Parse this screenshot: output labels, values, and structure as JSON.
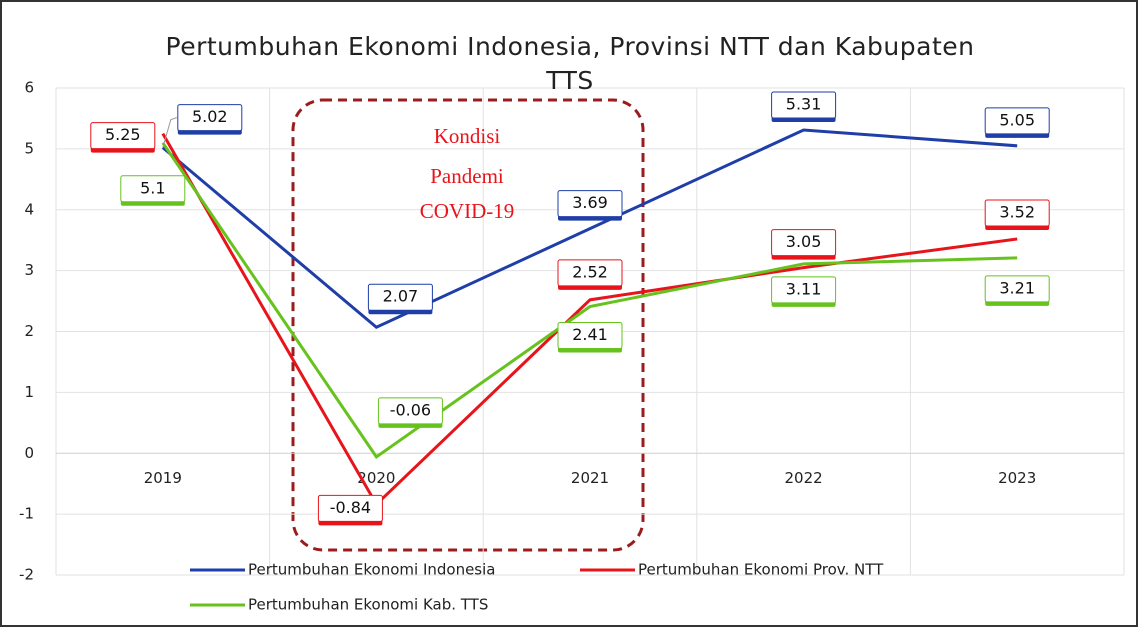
{
  "chart_data": {
    "type": "line",
    "title": "Pertumbuhan Ekonomi Indonesia, Provinsi NTT dan Kabupaten TTS",
    "annotation": [
      "Kondisi",
      "Pandemi",
      "COVID-19"
    ],
    "categories": [
      "2019",
      "2020",
      "2021",
      "2022",
      "2023"
    ],
    "series": [
      {
        "name": "Pertumbuhan Ekonomi Indonesia",
        "color": "#1f3ea8",
        "values": [
          5.02,
          2.07,
          3.69,
          5.31,
          5.05
        ]
      },
      {
        "name": "Pertumbuhan Ekonomi Prov. NTT",
        "color": "#e8141b",
        "values": [
          5.25,
          -0.84,
          2.52,
          3.05,
          3.52
        ]
      },
      {
        "name": "Pertumbuhan Ekonomi Kab. TTS",
        "color": "#66c21c",
        "values": [
          5.1,
          -0.06,
          2.41,
          3.11,
          3.21
        ]
      }
    ],
    "ylim": [
      -2,
      6
    ],
    "yticks": [
      -2,
      -1,
      0,
      1,
      2,
      3,
      4,
      5,
      6
    ],
    "grid": true
  }
}
